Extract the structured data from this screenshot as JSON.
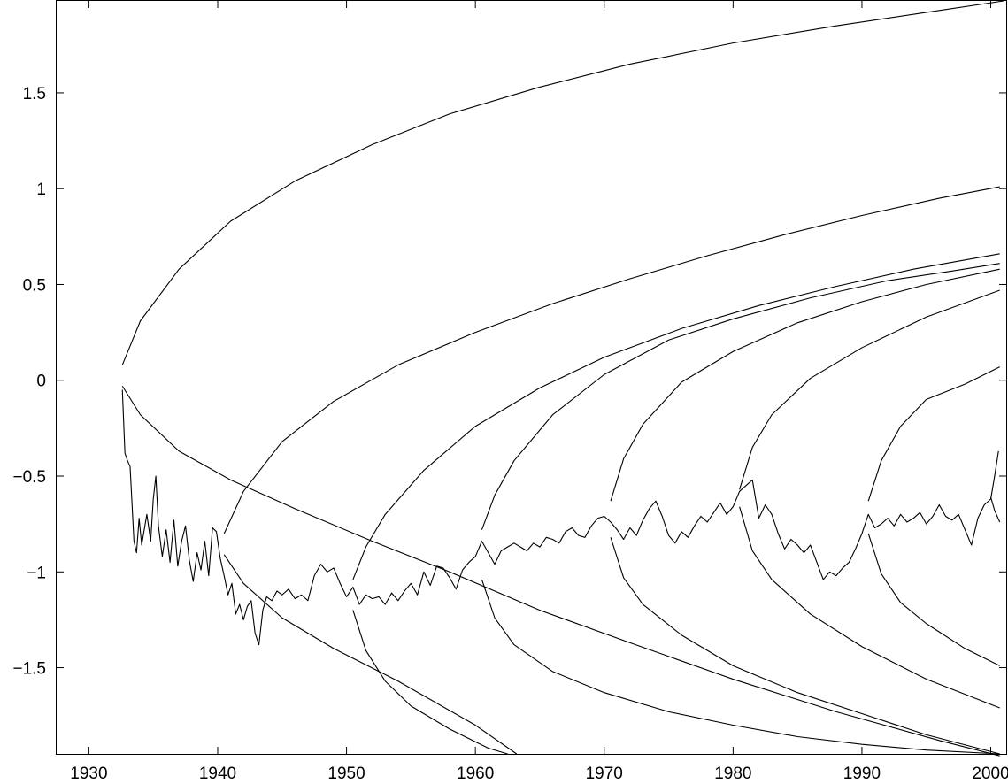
{
  "chart_data": {
    "type": "line",
    "title": "",
    "xlabel": "",
    "ylabel": "",
    "xlim": [
      1927.5,
      2001.2
    ],
    "ylim": [
      -1.95,
      1.98
    ],
    "grid": false,
    "legend": "none",
    "x_ticks": [
      1930,
      1940,
      1950,
      1960,
      1970,
      1980,
      1990,
      2000
    ],
    "y_ticks": [
      {
        "value": -1.5,
        "label": "−1.5"
      },
      {
        "value": -1,
        "label": "−1"
      },
      {
        "value": -0.5,
        "label": "−0.5"
      },
      {
        "value": 0,
        "label": "0"
      },
      {
        "value": 0.5,
        "label": "0.5"
      },
      {
        "value": 1,
        "label": "1"
      },
      {
        "value": 1.5,
        "label": "1.5"
      }
    ],
    "line_color": "#000000",
    "series": [
      {
        "x": [
          1932.6,
          1932.8,
          1933.0,
          1933.2,
          1933.5,
          1933.7,
          1933.9,
          1934.1,
          1934.3,
          1934.5,
          1934.8,
          1935.0,
          1935.2,
          1935.4,
          1935.7,
          1936.0,
          1936.3,
          1936.6,
          1936.9,
          1937.2,
          1937.5,
          1937.8,
          1938.1,
          1938.4,
          1938.7,
          1939.0,
          1939.3,
          1939.6,
          1939.9,
          1940.2,
          1940.5,
          1940.8,
          1941.1,
          1941.4,
          1941.7,
          1942.0,
          1942.3,
          1942.6,
          1942.9,
          1943.2,
          1943.5,
          1943.8,
          1944.2,
          1944.6,
          1945.0,
          1945.5,
          1946.0,
          1946.5,
          1947.0,
          1947.5,
          1948.0,
          1948.5,
          1949.0,
          1949.5,
          1950.0,
          1950.5,
          1951.0,
          1951.5,
          1952.0,
          1952.5,
          1953.0,
          1953.5,
          1954.0,
          1954.5,
          1955.0,
          1955.5,
          1956.0,
          1956.5,
          1957.0,
          1957.5,
          1958.0,
          1958.5,
          1959.0,
          1959.5,
          1960.0,
          1960.5,
          1961.0,
          1961.5,
          1962.0,
          1962.5,
          1963.0,
          1963.5,
          1964.0,
          1964.5,
          1965.0,
          1965.5,
          1966.0,
          1966.5,
          1967.0,
          1967.5,
          1968.0,
          1968.5,
          1969.0,
          1969.5,
          1970.0,
          1970.5,
          1971.0,
          1971.5,
          1972.0,
          1972.5,
          1973.0,
          1973.5,
          1974.0,
          1974.5,
          1975.0,
          1975.5,
          1976.0,
          1976.5,
          1977.0,
          1977.5,
          1978.0,
          1978.5,
          1979.0,
          1979.5,
          1980.0,
          1980.5,
          1981.0,
          1981.5,
          1982.0,
          1982.5,
          1983.0,
          1983.5,
          1984.0,
          1984.5,
          1985.0,
          1985.5,
          1986.0,
          1986.5,
          1987.0,
          1987.5,
          1988.0,
          1988.5,
          1989.0,
          1989.5,
          1990.0,
          1990.5,
          1991.0,
          1991.5,
          1992.0,
          1992.5,
          1993.0,
          1993.5,
          1994.0,
          1994.5,
          1995.0,
          1995.5,
          1996.0,
          1996.5,
          1997.0,
          1997.5,
          1998.0,
          1998.5,
          1999.0,
          1999.5,
          2000.0,
          2000.3,
          2000.6
        ],
        "y": [
          -0.05,
          -0.38,
          -0.42,
          -0.45,
          -0.84,
          -0.9,
          -0.72,
          -0.86,
          -0.78,
          -0.7,
          -0.84,
          -0.62,
          -0.5,
          -0.76,
          -0.92,
          -0.78,
          -0.95,
          -0.73,
          -0.97,
          -0.84,
          -0.76,
          -0.94,
          -1.05,
          -0.9,
          -0.99,
          -0.84,
          -1.02,
          -0.77,
          -0.79,
          -0.93,
          -1.02,
          -1.12,
          -1.06,
          -1.22,
          -1.17,
          -1.25,
          -1.18,
          -1.15,
          -1.32,
          -1.38,
          -1.2,
          -1.13,
          -1.15,
          -1.1,
          -1.12,
          -1.09,
          -1.14,
          -1.12,
          -1.15,
          -1.02,
          -0.96,
          -1.0,
          -0.98,
          -1.06,
          -1.13,
          -1.08,
          -1.17,
          -1.12,
          -1.14,
          -1.13,
          -1.17,
          -1.11,
          -1.15,
          -1.1,
          -1.06,
          -1.12,
          -1.0,
          -1.07,
          -0.97,
          -0.98,
          -1.03,
          -1.09,
          -0.99,
          -0.95,
          -0.92,
          -0.84,
          -0.9,
          -0.96,
          -0.89,
          -0.87,
          -0.85,
          -0.87,
          -0.89,
          -0.85,
          -0.87,
          -0.82,
          -0.83,
          -0.85,
          -0.79,
          -0.77,
          -0.81,
          -0.82,
          -0.76,
          -0.72,
          -0.71,
          -0.74,
          -0.78,
          -0.83,
          -0.77,
          -0.81,
          -0.73,
          -0.67,
          -0.63,
          -0.71,
          -0.81,
          -0.85,
          -0.79,
          -0.82,
          -0.76,
          -0.71,
          -0.74,
          -0.69,
          -0.64,
          -0.7,
          -0.66,
          -0.58,
          -0.55,
          -0.52,
          -0.72,
          -0.65,
          -0.7,
          -0.8,
          -0.88,
          -0.83,
          -0.86,
          -0.9,
          -0.86,
          -0.95,
          -1.04,
          -1.0,
          -1.02,
          -0.98,
          -0.95,
          -0.88,
          -0.8,
          -0.7,
          -0.77,
          -0.75,
          -0.72,
          -0.76,
          -0.7,
          -0.74,
          -0.72,
          -0.69,
          -0.75,
          -0.71,
          -0.65,
          -0.71,
          -0.73,
          -0.7,
          -0.78,
          -0.86,
          -0.72,
          -0.65,
          -0.62,
          -0.5,
          -0.37
        ]
      },
      {
        "x": [
          1932.6,
          1934,
          1937,
          1941,
          1946,
          1952,
          1958,
          1965,
          1972,
          1980,
          1988,
          1996,
          2001
        ],
        "y": [
          0.08,
          0.31,
          0.58,
          0.83,
          1.04,
          1.23,
          1.39,
          1.53,
          1.65,
          1.76,
          1.85,
          1.93,
          1.98
        ]
      },
      {
        "x": [
          1932.6,
          1934,
          1937,
          1941,
          1946,
          1952,
          1958,
          1965,
          1972,
          1980,
          1988,
          1996,
          2000.7
        ],
        "y": [
          -0.03,
          -0.18,
          -0.37,
          -0.52,
          -0.67,
          -0.84,
          -1.0,
          -1.2,
          -1.37,
          -1.56,
          -1.73,
          -1.88,
          -1.96
        ]
      },
      {
        "x": [
          1940.5,
          1942,
          1945,
          1949,
          1954,
          1960,
          1966,
          1972,
          1978,
          1984,
          1990,
          1996,
          2000.7
        ],
        "y": [
          -0.8,
          -0.58,
          -0.32,
          -0.11,
          0.08,
          0.25,
          0.4,
          0.53,
          0.65,
          0.76,
          0.86,
          0.95,
          1.01
        ]
      },
      {
        "x": [
          1940.5,
          1942,
          1945,
          1949,
          1954,
          1960,
          1963.2
        ],
        "y": [
          -0.91,
          -1.06,
          -1.24,
          -1.4,
          -1.57,
          -1.8,
          -1.95
        ]
      },
      {
        "x": [
          1950.5,
          1951.5,
          1953,
          1956,
          1960,
          1965,
          1970,
          1976,
          1982,
          1988,
          1994,
          2000.7
        ],
        "y": [
          -1.04,
          -0.87,
          -0.7,
          -0.47,
          -0.24,
          -0.04,
          0.12,
          0.27,
          0.39,
          0.49,
          0.58,
          0.66
        ]
      },
      {
        "x": [
          1950.5,
          1951.5,
          1953,
          1955,
          1958,
          1961,
          1962.5
        ],
        "y": [
          -1.2,
          -1.41,
          -1.57,
          -1.7,
          -1.82,
          -1.92,
          -1.95
        ]
      },
      {
        "x": [
          1960.5,
          1961.5,
          1963,
          1966,
          1970,
          1975,
          1980,
          1986,
          1992,
          1997,
          2000.7
        ],
        "y": [
          -0.78,
          -0.6,
          -0.42,
          -0.18,
          0.03,
          0.21,
          0.32,
          0.43,
          0.52,
          0.57,
          0.61
        ]
      },
      {
        "x": [
          1960.5,
          1961.5,
          1963,
          1966,
          1970,
          1975,
          1980,
          1985,
          1990,
          1995,
          2000.7
        ],
        "y": [
          -1.04,
          -1.24,
          -1.38,
          -1.52,
          -1.63,
          -1.73,
          -1.8,
          -1.86,
          -1.9,
          -1.93,
          -1.95
        ]
      },
      {
        "x": [
          1970.5,
          1971.5,
          1973,
          1976,
          1980,
          1985,
          1990,
          1995,
          2000.7
        ],
        "y": [
          -0.63,
          -0.41,
          -0.23,
          -0.01,
          0.15,
          0.3,
          0.41,
          0.5,
          0.58
        ]
      },
      {
        "x": [
          1970.5,
          1971.5,
          1973,
          1976,
          1980,
          1985,
          1990,
          1995,
          2000.7
        ],
        "y": [
          -0.82,
          -1.03,
          -1.17,
          -1.33,
          -1.49,
          -1.63,
          -1.74,
          -1.85,
          -1.95
        ]
      },
      {
        "x": [
          1980.5,
          1981.5,
          1983,
          1986,
          1990,
          1995,
          2000.7
        ],
        "y": [
          -0.57,
          -0.35,
          -0.18,
          0.01,
          0.17,
          0.33,
          0.47
        ]
      },
      {
        "x": [
          1980.5,
          1981.5,
          1983,
          1986,
          1990,
          1995,
          2000.7
        ],
        "y": [
          -0.66,
          -0.89,
          -1.04,
          -1.22,
          -1.39,
          -1.56,
          -1.71
        ]
      },
      {
        "x": [
          1990.5,
          1991.5,
          1993,
          1995,
          1998,
          2000.7
        ],
        "y": [
          -0.63,
          -0.42,
          -0.24,
          -0.1,
          -0.02,
          0.07
        ]
      },
      {
        "x": [
          1990.5,
          1991.5,
          1993,
          1995,
          1998,
          2000.7
        ],
        "y": [
          -0.8,
          -1.01,
          -1.16,
          -1.27,
          -1.4,
          -1.49
        ]
      },
      {
        "x": [
          2000.0,
          2000.3,
          2000.7
        ],
        "y": [
          -0.61,
          -0.68,
          -0.74
        ]
      }
    ]
  }
}
